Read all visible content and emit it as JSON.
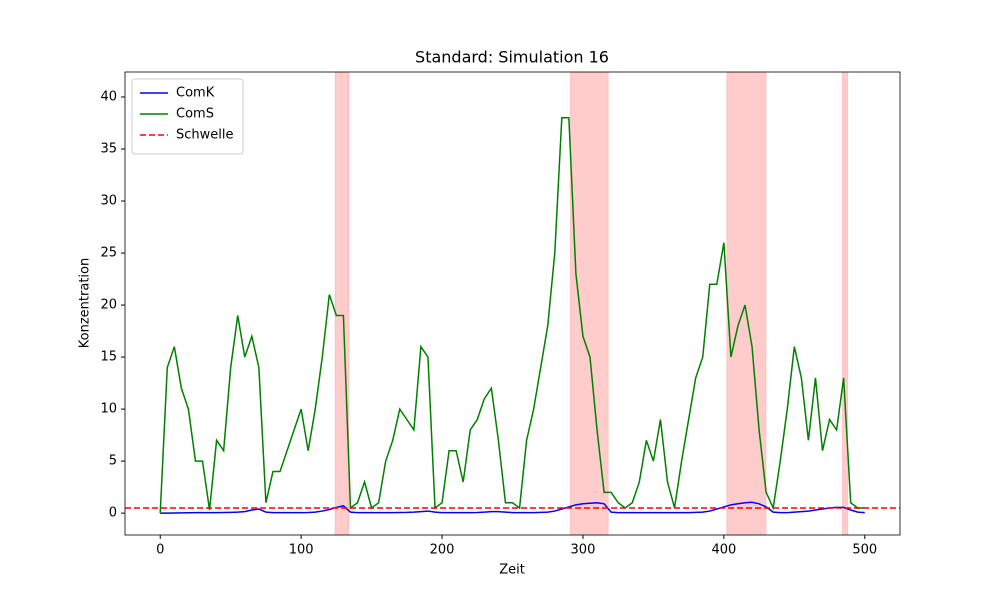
{
  "chart_data": {
    "type": "line",
    "title": "Standard: Simulation 16",
    "x_label": "Zeit",
    "y_label": "Konzentration",
    "x": [
      0,
      5,
      10,
      15,
      20,
      25,
      30,
      35,
      40,
      45,
      50,
      55,
      60,
      65,
      70,
      75,
      80,
      85,
      90,
      95,
      100,
      105,
      110,
      115,
      120,
      125,
      130,
      135,
      140,
      145,
      150,
      155,
      160,
      165,
      170,
      175,
      180,
      185,
      190,
      195,
      200,
      205,
      210,
      215,
      220,
      225,
      230,
      235,
      240,
      245,
      250,
      255,
      260,
      265,
      270,
      275,
      280,
      285,
      290,
      295,
      300,
      305,
      310,
      315,
      320,
      325,
      330,
      335,
      340,
      345,
      350,
      355,
      360,
      365,
      370,
      375,
      380,
      385,
      390,
      395,
      400,
      405,
      410,
      415,
      420,
      425,
      430,
      435,
      440,
      445,
      450,
      455,
      460,
      465,
      470,
      475,
      480,
      485,
      490,
      495,
      500
    ],
    "series": [
      {
        "name": "ComK",
        "color": "#0000ff",
        "values": [
          0,
          0,
          0.02,
          0.03,
          0.04,
          0.05,
          0.05,
          0.05,
          0.05,
          0.06,
          0.08,
          0.1,
          0.15,
          0.3,
          0.4,
          0.1,
          0.05,
          0.05,
          0.05,
          0.05,
          0.05,
          0.06,
          0.1,
          0.2,
          0.35,
          0.55,
          0.7,
          0.1,
          0.05,
          0.05,
          0.05,
          0.05,
          0.05,
          0.05,
          0.06,
          0.07,
          0.1,
          0.15,
          0.2,
          0.1,
          0.05,
          0.05,
          0.05,
          0.05,
          0.05,
          0.06,
          0.1,
          0.15,
          0.15,
          0.1,
          0.05,
          0.05,
          0.05,
          0.05,
          0.07,
          0.1,
          0.2,
          0.4,
          0.6,
          0.8,
          0.9,
          0.95,
          1.0,
          0.9,
          0.1,
          0.05,
          0.05,
          0.05,
          0.05,
          0.05,
          0.05,
          0.05,
          0.05,
          0.05,
          0.05,
          0.05,
          0.07,
          0.1,
          0.2,
          0.4,
          0.6,
          0.8,
          0.9,
          1.0,
          1.05,
          0.9,
          0.6,
          0.1,
          0.05,
          0.05,
          0.1,
          0.15,
          0.2,
          0.3,
          0.4,
          0.5,
          0.55,
          0.55,
          0.3,
          0.1,
          0.05
        ]
      },
      {
        "name": "ComS",
        "color": "#008000",
        "values": [
          0,
          14,
          16,
          12,
          10,
          5,
          5,
          0.3,
          7,
          6,
          14,
          19,
          15,
          17,
          14,
          1,
          4,
          4,
          6,
          8,
          10,
          6,
          10,
          15,
          21,
          19,
          19,
          0.5,
          1,
          3,
          0.5,
          1,
          5,
          7,
          10,
          9,
          8,
          16,
          15,
          0.5,
          1,
          6,
          6,
          3,
          8,
          9,
          11,
          12,
          7,
          1,
          1,
          0.5,
          7,
          10,
          14,
          18,
          25,
          38,
          38,
          23,
          17,
          15,
          8,
          2,
          2,
          1,
          0.5,
          1,
          3,
          7,
          5,
          9,
          3,
          0.5,
          5,
          9,
          13,
          15,
          22,
          22,
          26,
          15,
          18,
          20,
          16,
          8,
          2,
          0.5,
          5,
          10,
          16,
          13,
          7,
          13,
          6,
          9,
          8,
          13,
          1,
          0.5,
          0.5
        ]
      }
    ],
    "threshold": {
      "name": "Schwelle",
      "value": 0.5,
      "color": "#ff0000"
    },
    "shaded_spans": [
      [
        124,
        134
      ],
      [
        291,
        318
      ],
      [
        402,
        430
      ],
      [
        484,
        488
      ]
    ],
    "span_color": "#ff0000",
    "xlim": [
      -25,
      525
    ],
    "ylim": [
      -2.1,
      42.4
    ],
    "xticks": [
      0,
      100,
      200,
      300,
      400,
      500
    ],
    "yticks": [
      0,
      5,
      10,
      15,
      20,
      25,
      30,
      35,
      40
    ],
    "legend": "upper left"
  }
}
